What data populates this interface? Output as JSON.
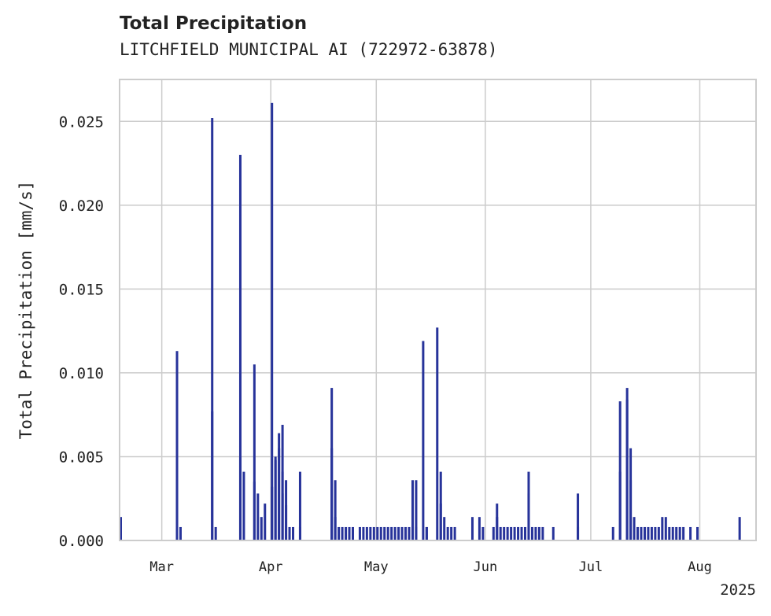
{
  "chart_data": {
    "type": "bar",
    "title": "Total Precipitation",
    "subtitle": "LITCHFIELD MUNICIPAL AI (722972-63878)",
    "xlabel": "",
    "ylabel": "Total Precipitation [mm/s]",
    "ylim": [
      0,
      0.0275
    ],
    "xlim": [
      "2025-02-17",
      "2025-08-17"
    ],
    "yticks": [
      0.0,
      0.005,
      0.01,
      0.015,
      0.02,
      0.025
    ],
    "ytick_labels": [
      "0.000",
      "0.005",
      "0.010",
      "0.015",
      "0.020",
      "0.025"
    ],
    "xticks": [
      "2025-03-01",
      "2025-04-01",
      "2025-05-01",
      "2025-06-01",
      "2025-07-01",
      "2025-08-01"
    ],
    "xtick_labels": [
      "Mar",
      "Apr",
      "May",
      "Jun",
      "Jul",
      "Aug"
    ],
    "x_offset_label": "2025",
    "grid": true,
    "color": "#27339a",
    "x": [
      "2025-02-17",
      "2025-03-05",
      "2025-03-05",
      "2025-03-06",
      "2025-03-15",
      "2025-03-15",
      "2025-03-16",
      "2025-03-23",
      "2025-03-23",
      "2025-03-24",
      "2025-03-27",
      "2025-03-27",
      "2025-03-28",
      "2025-03-29",
      "2025-03-30",
      "2025-04-01",
      "2025-04-01",
      "2025-04-02",
      "2025-04-02",
      "2025-04-03",
      "2025-04-03",
      "2025-04-04",
      "2025-04-04",
      "2025-04-04",
      "2025-04-05",
      "2025-04-05",
      "2025-04-06",
      "2025-04-07",
      "2025-04-09",
      "2025-04-09",
      "2025-04-18",
      "2025-04-18",
      "2025-04-19",
      "2025-04-19",
      "2025-04-20",
      "2025-04-21",
      "2025-04-22",
      "2025-04-23",
      "2025-04-24",
      "2025-04-26",
      "2025-04-27",
      "2025-04-28",
      "2025-04-29",
      "2025-04-30",
      "2025-05-01",
      "2025-05-02",
      "2025-05-03",
      "2025-05-04",
      "2025-05-05",
      "2025-05-06",
      "2025-05-07",
      "2025-05-08",
      "2025-05-09",
      "2025-05-10",
      "2025-05-11",
      "2025-05-12",
      "2025-05-12",
      "2025-05-14",
      "2025-05-15",
      "2025-05-15",
      "2025-05-18",
      "2025-05-19",
      "2025-05-19",
      "2025-05-20",
      "2025-05-21",
      "2025-05-22",
      "2025-05-23",
      "2025-05-28",
      "2025-05-30",
      "2025-05-31",
      "2025-06-03",
      "2025-06-04",
      "2025-06-04",
      "2025-06-05",
      "2025-06-06",
      "2025-06-07",
      "2025-06-08",
      "2025-06-09",
      "2025-06-10",
      "2025-06-11",
      "2025-06-12",
      "2025-06-13",
      "2025-06-13",
      "2025-06-14",
      "2025-06-15",
      "2025-06-16",
      "2025-06-17",
      "2025-06-20",
      "2025-06-27",
      "2025-06-27",
      "2025-07-07",
      "2025-07-09",
      "2025-07-09",
      "2025-07-11",
      "2025-07-11",
      "2025-07-12",
      "2025-07-12",
      "2025-07-13",
      "2025-07-14",
      "2025-07-15",
      "2025-07-16",
      "2025-07-17",
      "2025-07-18",
      "2025-07-19",
      "2025-07-20",
      "2025-07-21",
      "2025-07-22",
      "2025-07-23",
      "2025-07-24",
      "2025-07-25",
      "2025-07-26",
      "2025-07-27",
      "2025-07-29",
      "2025-07-31",
      "2025-08-12"
    ],
    "values": [
      0.0014,
      0.0113,
      0.0036,
      0.0008,
      0.0252,
      0.0077,
      0.0008,
      0.023,
      0.005,
      0.0041,
      0.0105,
      0.0035,
      0.0028,
      0.0014,
      0.0022,
      0.0261,
      0.0032,
      0.005,
      0.0048,
      0.0064,
      0.0055,
      0.0069,
      0.0041,
      0.0028,
      0.0036,
      0.0021,
      0.0008,
      0.0008,
      0.0041,
      0.0008,
      0.0091,
      0.0055,
      0.0036,
      0.0014,
      0.0008,
      0.0008,
      0.0008,
      0.0008,
      0.0008,
      0.0008,
      0.0008,
      0.0008,
      0.0008,
      0.0008,
      0.0008,
      0.0008,
      0.0008,
      0.0008,
      0.0008,
      0.0008,
      0.0008,
      0.0008,
      0.0008,
      0.0008,
      0.0036,
      0.0036,
      0.0008,
      0.0119,
      0.0008,
      0.0008,
      0.0127,
      0.0041,
      0.0022,
      0.0014,
      0.0008,
      0.0008,
      0.0008,
      0.0014,
      0.0014,
      0.0008,
      0.0008,
      0.0022,
      0.0014,
      0.0008,
      0.0008,
      0.0008,
      0.0008,
      0.0008,
      0.0008,
      0.0008,
      0.0008,
      0.0041,
      0.0028,
      0.0008,
      0.0008,
      0.0008,
      0.0008,
      0.0008,
      0.0028,
      0.0008,
      0.0008,
      0.0083,
      0.0041,
      0.0091,
      0.0084,
      0.0055,
      0.0036,
      0.0014,
      0.0008,
      0.0008,
      0.0008,
      0.0008,
      0.0008,
      0.0008,
      0.0008,
      0.0014,
      0.0014,
      0.0008,
      0.0008,
      0.0008,
      0.0008,
      0.0008,
      0.0008,
      0.0008,
      0.0014
    ]
  }
}
